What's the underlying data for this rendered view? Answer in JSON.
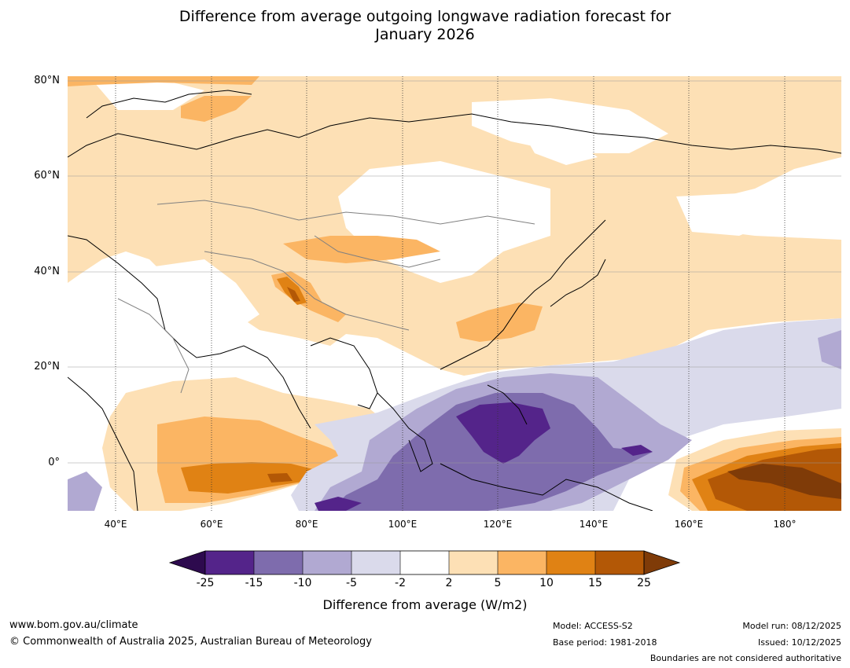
{
  "title": {
    "line1": "Difference from average outgoing longwave radiation forecast for",
    "line2": "January 2026"
  },
  "map": {
    "lat_labels": [
      "80°N",
      "60°N",
      "40°N",
      "20°N",
      "0°"
    ],
    "lon_labels": [
      "40°E",
      "60°E",
      "80°E",
      "100°E",
      "120°E",
      "140°E",
      "160°E",
      "180°"
    ]
  },
  "colorbar": {
    "title": "Difference from average (W/m2)",
    "ticks": [
      "-25",
      "-15",
      "-10",
      "-5",
      "-2",
      "2",
      "5",
      "10",
      "15",
      "25"
    ],
    "colors": {
      "below_-25": "#2d0a4e",
      "-25_-15": "#54248a",
      "-15_-10": "#7e6cad",
      "-10_-5": "#b1a9d2",
      "-5_-2": "#dadaeb",
      "-2_2": "#ffffff",
      "2_5": "#fde0b5",
      "5_10": "#fbb563",
      "10_15": "#e08214",
      "15_25": "#b35806",
      "above_25": "#7f3b08"
    }
  },
  "footer": {
    "url": "www.bom.gov.au/climate",
    "copyright": "© Commonwealth of Australia 2025, Australian Bureau of Meteorology",
    "model": "Model: ACCESS-S2",
    "base_period": "Base period: 1981-2018",
    "model_run": "Model run: 08/12/2025",
    "issued": "Issued: 10/12/2025",
    "disclaimer": "Boundaries are not considered authoritative"
  }
}
